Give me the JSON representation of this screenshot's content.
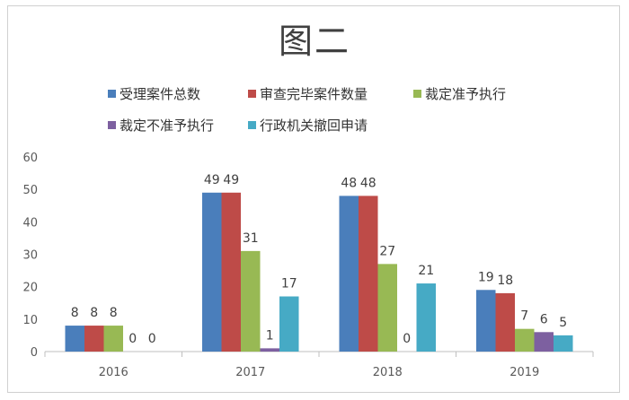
{
  "chart_data": {
    "type": "bar",
    "title": "图二",
    "xlabel": "",
    "ylabel": "",
    "categories": [
      "2016",
      "2017",
      "2018",
      "2019"
    ],
    "series": [
      {
        "name": "受理案件总数",
        "color": "#4a7ebb",
        "values": [
          8,
          49,
          48,
          19
        ]
      },
      {
        "name": "审查完毕案件数量",
        "color": "#be4b48",
        "values": [
          8,
          49,
          48,
          18
        ]
      },
      {
        "name": "裁定准予执行",
        "color": "#98b954",
        "values": [
          8,
          31,
          27,
          7
        ]
      },
      {
        "name": "裁定不准予执行",
        "color": "#7d60a0",
        "values": [
          0,
          1,
          0,
          6
        ]
      },
      {
        "name": "行政机关撤回申请",
        "color": "#46aac5",
        "values": [
          0,
          17,
          21,
          5
        ]
      }
    ],
    "ylim": [
      0,
      60
    ],
    "yticks": [
      0,
      10,
      20,
      30,
      40,
      50,
      60
    ],
    "grid": false,
    "legend_position": "top",
    "data_labels": true
  }
}
